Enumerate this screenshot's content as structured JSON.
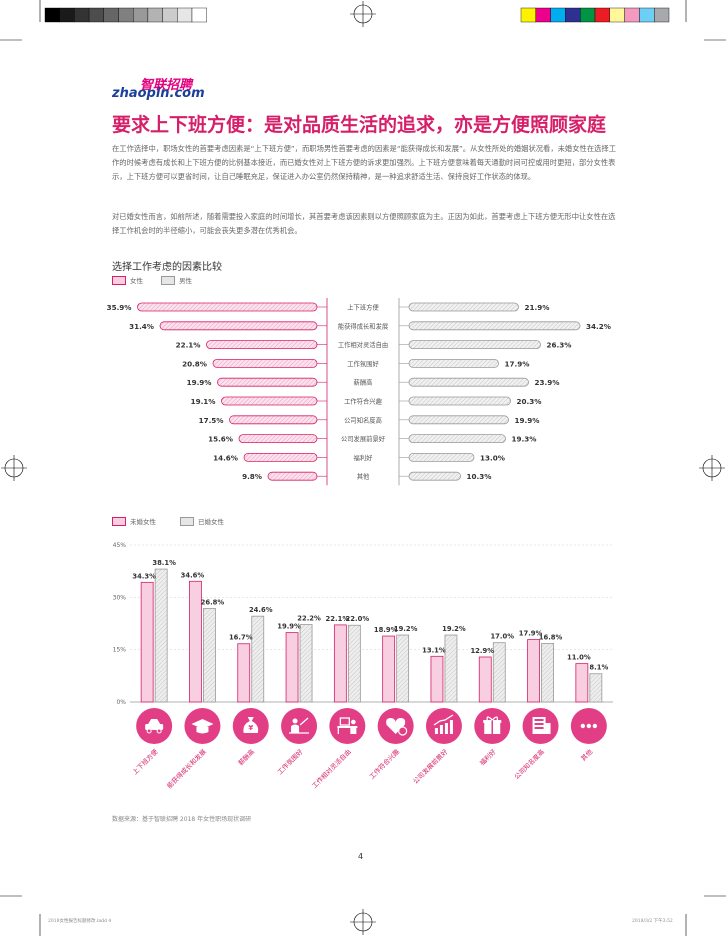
{
  "brand": {
    "logo_cn": "智联招聘",
    "logo_en": "zhaopin.com"
  },
  "headline": "要求上下班方便：是对品质生活的追求，亦是方便照顾家庭",
  "paragraphs": [
    "在工作选择中，职场女性的首要考虑因素是“上下班方便”，而职场男性首要考虑的因素是“能获得成长和发展”。从女性所处的婚姻状况看，未婚女性在选择工作的时候考虑有成长和上下班方便的比例基本接近，而已婚女性对上下班方便的诉求更加强烈。上下班方便意味着每天通勤时间可控或用时更短，部分女性表示，上下班方便可以更省时间，让自己睡眠充足，保证进入办公室仍然保持精神，是一种追求舒适生活、保持良好工作状态的体现。",
    "对已婚女性而言，如前所述，随着需要投入家庭的时间增长，其首要考虑该因素则以方便照顾家庭为主。正因为如此，首要考虑上下班方便无形中让女性在选择工作机会时的半径缩小，可能会丧失更多潜在优秀机会。"
  ],
  "chart_data": [
    {
      "type": "bar",
      "orientation": "horizontal-butterfly",
      "title": "选择工作考虑的因素比较",
      "categories": [
        "上下班方便",
        "能获得成长和发展",
        "工作相对灵活自由",
        "工作氛围好",
        "薪酬高",
        "工作符合兴趣",
        "公司知名度高",
        "公司发展前景好",
        "福利好",
        "其他"
      ],
      "series": [
        {
          "name": "女性",
          "values": [
            35.9,
            31.4,
            22.1,
            20.8,
            19.9,
            19.1,
            17.5,
            15.6,
            14.6,
            9.8
          ],
          "labels": [
            "35.9%",
            "31.4%",
            "22.1%",
            "20.8%",
            "19.9%",
            "19.1%",
            "17.5%",
            "15.6%",
            "14.6%",
            "9.8%"
          ],
          "color": "#f7cfe0",
          "stroke": "#d61f69"
        },
        {
          "name": "男性",
          "values": [
            21.9,
            34.2,
            26.3,
            17.9,
            23.9,
            20.3,
            19.9,
            19.3,
            13.0,
            10.3
          ],
          "labels": [
            "21.9%",
            "34.2%",
            "26.3%",
            "17.9%",
            "23.9%",
            "20.3%",
            "19.9%",
            "19.3%",
            "13.0%",
            "10.3%"
          ],
          "color": "#e6e6e6",
          "stroke": "#999999"
        }
      ],
      "legend_position": "top-left"
    },
    {
      "type": "bar",
      "orientation": "vertical-grouped",
      "categories": [
        "上下班方便",
        "能获得成长和发展",
        "薪酬高",
        "工作氛围好",
        "工作相对灵活自由",
        "工作符合兴趣",
        "公司发展前景好",
        "福利好",
        "公司知名度高",
        "其他"
      ],
      "series": [
        {
          "name": "未婚女性",
          "values": [
            34.3,
            34.6,
            16.7,
            19.9,
            22.1,
            18.9,
            13.1,
            12.9,
            17.9,
            11.0
          ],
          "labels": [
            "34.3%",
            "34.6%",
            "16.7%",
            "19.9%",
            "22.1%",
            "18.9%",
            "13.1%",
            "12.9%",
            "17.9%",
            "11.0%"
          ],
          "color": "#f7cfe0",
          "stroke": "#d61f69"
        },
        {
          "name": "已婚女性",
          "values": [
            38.1,
            26.8,
            24.6,
            22.2,
            22.0,
            19.2,
            19.2,
            17.0,
            16.8,
            8.1
          ],
          "labels": [
            "38.1%",
            "26.8%",
            "24.6%",
            "22.2%",
            "22.0%",
            "19.2%",
            "19.2%",
            "17.0%",
            "16.8%",
            "8.1%"
          ],
          "color": "#e6e6e6",
          "stroke": "#999999"
        }
      ],
      "ylim": [
        0,
        45
      ],
      "yticks": [
        "0%",
        "15%",
        "30%",
        "45%"
      ],
      "grid": true,
      "icons": [
        "car-icon",
        "graduation-cap-icon",
        "money-bag-icon",
        "people-desk-icon",
        "office-desk-icon",
        "heart-icon",
        "growth-chart-icon",
        "gift-icon",
        "building-icon",
        "more-dots-icon"
      ],
      "legend_position": "top-left",
      "accent": "#d61f69"
    }
  ],
  "source": "数据来源：基于智联招聘 2018 年女性职场现状调研",
  "page_number": "4",
  "footer": {
    "file": "2018女性报告标题修改.indd   4",
    "date": "2018/3/2   下午3:52"
  },
  "print_swatches": [
    "#000000",
    "#1a1a1a",
    "#333333",
    "#4d4d4d",
    "#666666",
    "#808080",
    "#999999",
    "#b3b3b3",
    "#cccccc",
    "#e6e6e6",
    "#ffffff"
  ],
  "color_swatches": [
    "#fff200",
    "#ec008c",
    "#00aeef",
    "#2e3192",
    "#009444",
    "#ed1c24",
    "#fff799",
    "#f49ac1",
    "#6dcff6",
    "#a7a9ac"
  ]
}
